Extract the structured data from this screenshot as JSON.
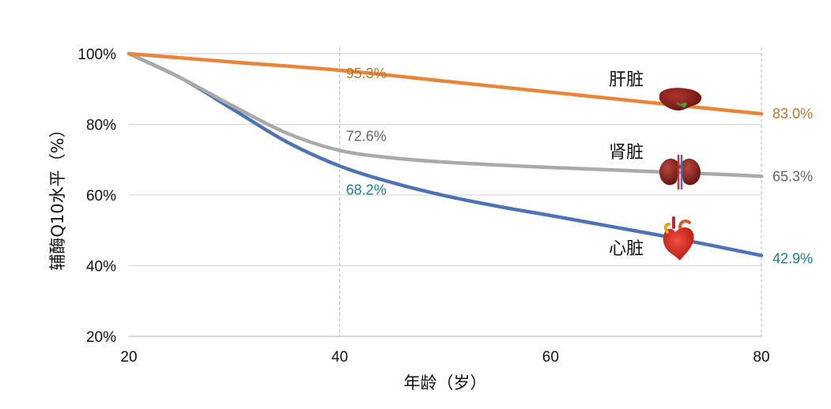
{
  "chart_data": {
    "type": "line",
    "xlabel": "年龄（岁）",
    "ylabel": "辅酶Q10水平（%）",
    "xlim": [
      20,
      80
    ],
    "ylim": [
      20,
      100
    ],
    "x_ticks": [
      "20",
      "40",
      "60",
      "80"
    ],
    "y_ticks": [
      "20%",
      "40%",
      "60%",
      "80%",
      "100%"
    ],
    "grid": "horizontal lines at y ticks; dashed vertical lines at x=40 and x=80",
    "legend": "none (series labeled inline next to organ icons)",
    "series": [
      {
        "name": "肝脏",
        "color": "#E8853A",
        "label_color": "#B8772E",
        "icon": "liver-icon",
        "points": [
          [
            20,
            100
          ],
          [
            30,
            97.6
          ],
          [
            40,
            95.3
          ],
          [
            50,
            92.2
          ],
          [
            60,
            89.1
          ],
          [
            70,
            86.0
          ],
          [
            80,
            83.0
          ]
        ],
        "labels": [
          {
            "x": 40,
            "y": 95.3,
            "text": "95.3%"
          },
          {
            "x": 80,
            "y": 83.0,
            "text": "83.0%"
          }
        ]
      },
      {
        "name": "肾脏",
        "color": "#AAAAAA",
        "label_color": "#666666",
        "icon": "kidney-icon",
        "points": [
          [
            20,
            100
          ],
          [
            25,
            93
          ],
          [
            30,
            85
          ],
          [
            35,
            77.5
          ],
          [
            40,
            72.6
          ],
          [
            45,
            70.5
          ],
          [
            50,
            69.3
          ],
          [
            55,
            68.5
          ],
          [
            60,
            67.8
          ],
          [
            65,
            67.2
          ],
          [
            70,
            66.6
          ],
          [
            75,
            66.0
          ],
          [
            80,
            65.3
          ]
        ],
        "labels": [
          {
            "x": 40,
            "y": 72.6,
            "text": "72.6%"
          },
          {
            "x": 80,
            "y": 65.3,
            "text": "65.3%"
          }
        ]
      },
      {
        "name": "心脏",
        "color": "#4E73B5",
        "label_color": "#1E8090",
        "icon": "heart-icon",
        "points": [
          [
            20,
            100
          ],
          [
            25,
            93
          ],
          [
            30,
            84
          ],
          [
            35,
            75
          ],
          [
            40,
            68.2
          ],
          [
            45,
            63.5
          ],
          [
            50,
            59.8
          ],
          [
            55,
            56.8
          ],
          [
            60,
            54.2
          ],
          [
            65,
            51.5
          ],
          [
            70,
            48.8
          ],
          [
            75,
            45.9
          ],
          [
            80,
            42.9
          ]
        ],
        "labels": [
          {
            "x": 40,
            "y": 68.2,
            "text": "68.2%"
          },
          {
            "x": 80,
            "y": 42.9,
            "text": "42.9%"
          }
        ]
      }
    ]
  }
}
